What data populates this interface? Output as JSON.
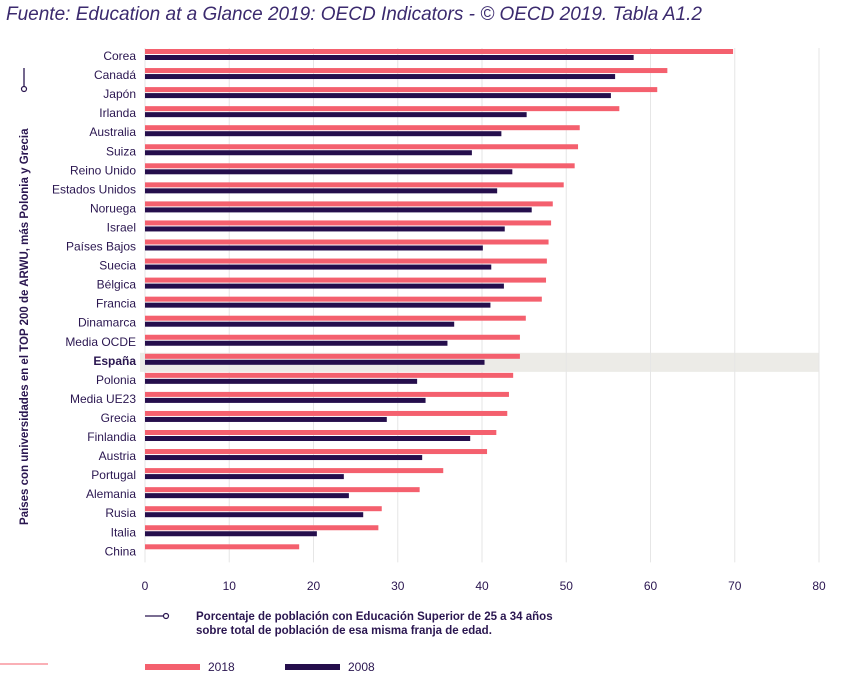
{
  "title": "Fuente: Education at a Glance 2019: OECD Indicators - © OECD 2019. Tabla A1.2",
  "chart_data": {
    "type": "bar",
    "orientation": "horizontal",
    "categories": [
      "Corea",
      "Canadá",
      "Japón",
      "Irlanda",
      "Australia",
      "Suiza",
      "Reino Unido",
      "Estados Unidos",
      "Noruega",
      "Israel",
      "Países Bajos",
      "Suecia",
      "Bélgica",
      "Francia",
      "Dinamarca",
      "Media OCDE",
      "España",
      "Polonia",
      "Media UE23",
      "Grecia",
      "Finlandia",
      "Austria",
      "Portugal",
      "Alemania",
      "Rusia",
      "Italia",
      "China"
    ],
    "highlight": "España",
    "series": [
      {
        "name": "2018",
        "color": "#f4606e",
        "values": [
          69.8,
          62.0,
          60.8,
          56.3,
          51.6,
          51.4,
          51.0,
          49.7,
          48.4,
          48.2,
          47.9,
          47.7,
          47.6,
          47.1,
          45.2,
          44.5,
          44.5,
          43.7,
          43.2,
          43.0,
          41.7,
          40.6,
          35.4,
          32.6,
          28.1,
          27.7,
          18.3
        ]
      },
      {
        "name": "2008",
        "color": "#250e4c",
        "values": [
          58.0,
          55.8,
          55.3,
          45.3,
          42.3,
          38.8,
          43.6,
          41.8,
          45.9,
          42.7,
          40.1,
          41.1,
          42.6,
          41.0,
          36.7,
          35.9,
          40.3,
          32.3,
          33.3,
          28.7,
          38.6,
          32.9,
          23.6,
          24.2,
          25.9,
          20.4,
          null
        ]
      }
    ],
    "xlim": [
      0,
      80
    ],
    "xticks": [
      "0",
      "10",
      "20",
      "30",
      "40",
      "50",
      "60",
      "70",
      "80"
    ],
    "xlabel_line1": "Porcentaje de población con Educación Superior de 25 a 34 años",
    "xlabel_line2": "sobre total de población de esa misma franja de edad.",
    "ylabel": "Países con universidades en el TOP 200 de  ARWU, más  Polonia y Grecia",
    "grid": "vertical",
    "legend": "bottom"
  }
}
